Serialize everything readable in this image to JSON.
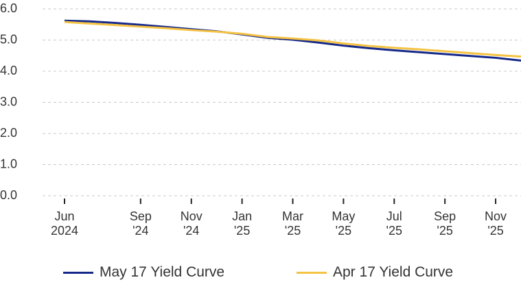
{
  "chart_data": {
    "type": "line",
    "x": [
      "2024-06",
      "2024-07",
      "2024-08",
      "2024-09",
      "2024-10",
      "2024-11",
      "2024-12",
      "2025-01",
      "2025-02",
      "2025-03",
      "2025-04",
      "2025-05",
      "2025-06",
      "2025-07",
      "2025-08",
      "2025-09",
      "2025-10",
      "2025-11",
      "2025-12"
    ],
    "series": [
      {
        "name": "May 17 Yield Curve",
        "color": "#14288a",
        "values": [
          5.62,
          5.6,
          5.55,
          5.49,
          5.42,
          5.35,
          5.28,
          5.18,
          5.07,
          5.01,
          4.92,
          4.82,
          4.74,
          4.67,
          4.61,
          4.55,
          4.49,
          4.43,
          4.34
        ]
      },
      {
        "name": "Apr 17 Yield Curve",
        "color": "#f5c242",
        "values": [
          5.58,
          5.53,
          5.48,
          5.43,
          5.38,
          5.32,
          5.27,
          5.2,
          5.1,
          5.05,
          4.99,
          4.89,
          4.81,
          4.75,
          4.7,
          4.64,
          4.58,
          4.52,
          4.47
        ]
      }
    ],
    "xlim": [
      "2024-06",
      "2025-12"
    ],
    "xticks": [
      {
        "value": "2024-06",
        "label": "Jun\n2024"
      },
      {
        "value": "2024-09",
        "label": "Sep\n'24"
      },
      {
        "value": "2024-11",
        "label": "Nov\n'24"
      },
      {
        "value": "2025-01",
        "label": "Jan\n'25"
      },
      {
        "value": "2025-03",
        "label": "Mar\n'25"
      },
      {
        "value": "2025-05",
        "label": "May\n'25"
      },
      {
        "value": "2025-07",
        "label": "Jul\n'25"
      },
      {
        "value": "2025-09",
        "label": "Sep\n'25"
      },
      {
        "value": "2025-11",
        "label": "Nov\n'25"
      }
    ],
    "ylim": [
      0,
      6
    ],
    "yticks": [
      {
        "value": 0,
        "label": "0.0"
      },
      {
        "value": 1,
        "label": "1.0"
      },
      {
        "value": 2,
        "label": "2.0"
      },
      {
        "value": 3,
        "label": "3.0"
      },
      {
        "value": 4,
        "label": "4.0"
      },
      {
        "value": 5,
        "label": "5.0"
      },
      {
        "value": 6,
        "label": "6.0"
      }
    ],
    "grid": true,
    "legend": "bottom"
  }
}
